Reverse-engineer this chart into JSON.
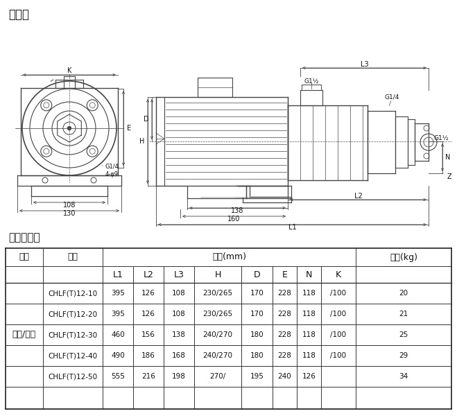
{
  "title_diagram": "安装图",
  "title_table": "尺寸和重量",
  "bg_color": "#ffffff",
  "table_data": [
    [
      "CHLF(T)12-10",
      "395",
      "126",
      "108",
      "230/265",
      "170",
      "228",
      "118",
      "/100",
      "20"
    ],
    [
      "CHLF(T)12-20",
      "395",
      "126",
      "108",
      "230/265",
      "170",
      "228",
      "118",
      "/100",
      "21"
    ],
    [
      "CHLF(T)12-30",
      "460",
      "156",
      "138",
      "240/270",
      "180",
      "228",
      "118",
      "/100",
      "25"
    ],
    [
      "CHLF(T)12-40",
      "490",
      "186",
      "168",
      "240/270",
      "180",
      "228",
      "118",
      "/100",
      "29"
    ],
    [
      "CHLF(T)12-50",
      "555",
      "216",
      "198",
      "270/",
      "195",
      "240",
      "126",
      "",
      "34"
    ]
  ],
  "line_color": "#444444",
  "text_color": "#111111"
}
